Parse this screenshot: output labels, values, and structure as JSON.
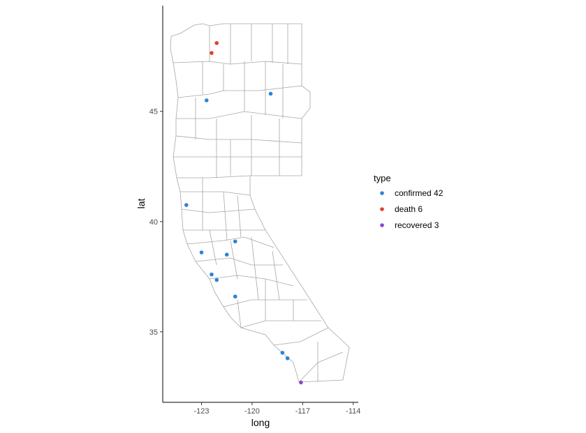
{
  "chart_data": {
    "type": "scatter",
    "title": "",
    "xlabel": "long",
    "ylabel": "lat",
    "xlim": [
      -125.3,
      -113.7
    ],
    "ylim": [
      31.8,
      49.8
    ],
    "x_ticks": [
      -123,
      -120,
      -117,
      -114
    ],
    "x_tick_labels": [
      "-123",
      "-120",
      "-117",
      "-114"
    ],
    "y_ticks": [
      35,
      40,
      45
    ],
    "y_tick_labels": [
      "35",
      "40",
      "45"
    ],
    "legend": {
      "title": "type",
      "placement": "right",
      "entries": [
        {
          "label": "confirmed 42",
          "color": "#2b83d6"
        },
        {
          "label": "death 6",
          "color": "#e0402b"
        },
        {
          "label": "recovered 3",
          "color": "#8e44cc"
        }
      ]
    },
    "series": [
      {
        "name": "confirmed",
        "color": "#2b83d6",
        "points": [
          {
            "x": -122.7,
            "y": 45.5
          },
          {
            "x": -118.9,
            "y": 45.8
          },
          {
            "x": -123.9,
            "y": 40.75
          },
          {
            "x": -121.0,
            "y": 39.1
          },
          {
            "x": -123.0,
            "y": 38.6
          },
          {
            "x": -121.5,
            "y": 38.5
          },
          {
            "x": -122.4,
            "y": 37.6
          },
          {
            "x": -122.1,
            "y": 37.35
          },
          {
            "x": -121.0,
            "y": 36.6
          },
          {
            "x": -118.2,
            "y": 34.05
          },
          {
            "x": -117.9,
            "y": 33.8
          }
        ]
      },
      {
        "name": "death",
        "color": "#e0402b",
        "points": [
          {
            "x": -122.1,
            "y": 48.1
          },
          {
            "x": -122.4,
            "y": 47.65
          }
        ]
      },
      {
        "name": "recovered",
        "color": "#8e44cc",
        "points": [
          {
            "x": -117.1,
            "y": 32.7
          }
        ]
      }
    ]
  }
}
